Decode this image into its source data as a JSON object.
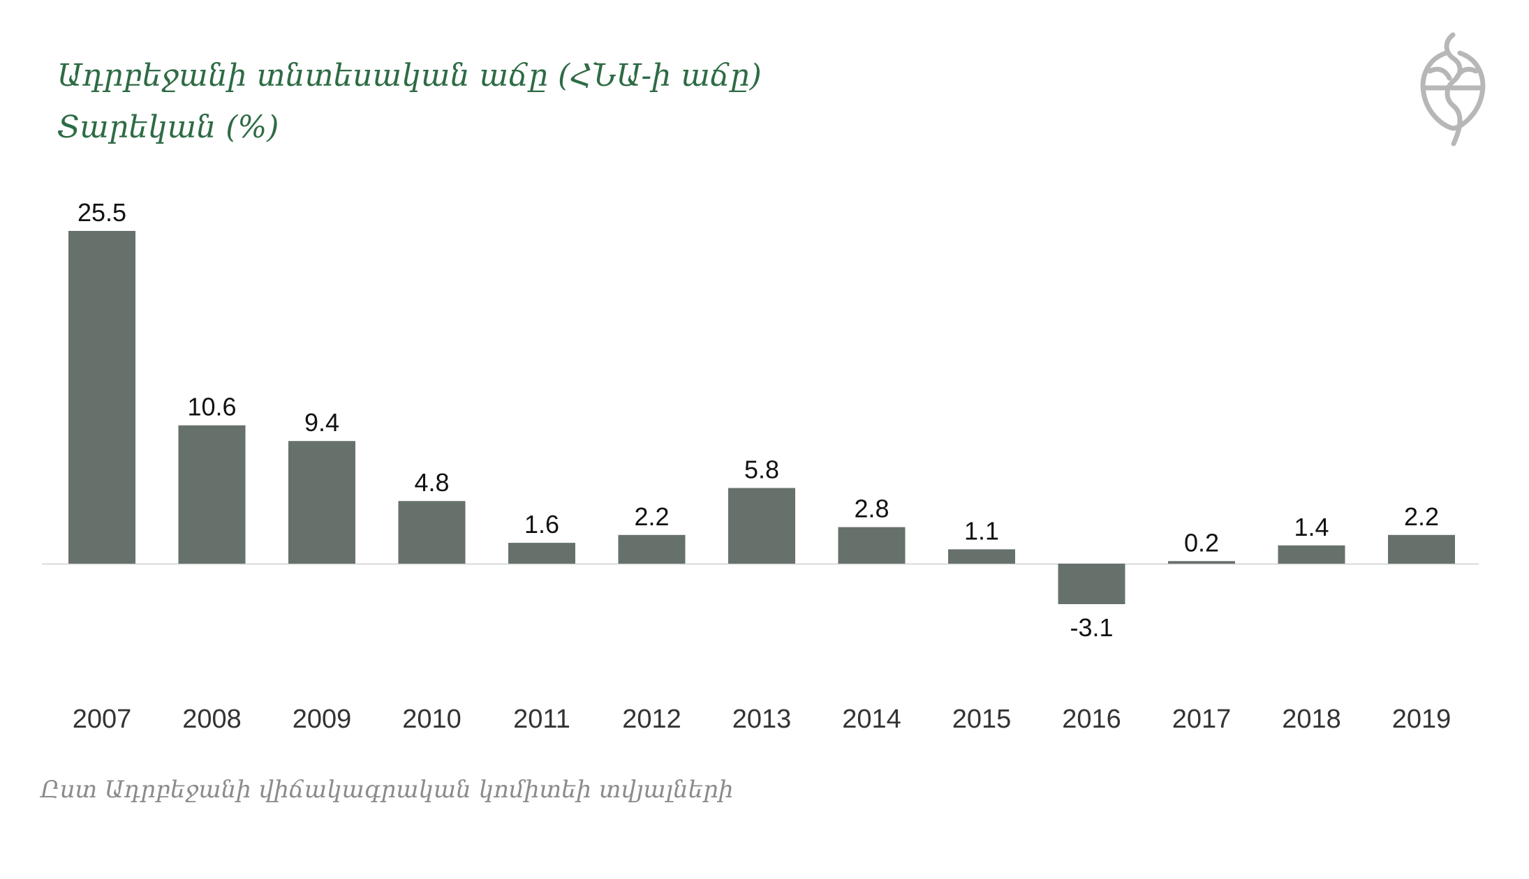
{
  "colors": {
    "title": "#2e6b45",
    "bar": "#67716b",
    "value_label": "#111111",
    "axis_label": "#333333",
    "baseline": "#d9d9d9",
    "source": "#8b8b8b",
    "logo": "#b7b7b7"
  },
  "header": {
    "title": "Ադրբեջանի տնտեսական աճը (ՀՆԱ-ի աճը)",
    "subtitle": "Տարեկան (%)"
  },
  "logo": {
    "icon": "seal-logo-icon"
  },
  "source": "Ըստ Ադրբեջանի վիճակագրական կոմիտեի տվյալների",
  "chart_data": {
    "type": "bar",
    "title": "Ադրբեջանի տնտեսական աճը (ՀՆԱ-ի աճը)",
    "subtitle": "Տարեկան (%)",
    "xlabel": "",
    "ylabel": "",
    "categories": [
      "2007",
      "2008",
      "2009",
      "2010",
      "2011",
      "2012",
      "2013",
      "2014",
      "2015",
      "2016",
      "2017",
      "2018",
      "2019"
    ],
    "values": [
      25.5,
      10.6,
      9.4,
      4.8,
      1.6,
      2.2,
      5.8,
      2.8,
      1.1,
      -3.1,
      0.2,
      1.4,
      2.2
    ],
    "value_labels": [
      "25.5",
      "10.6",
      "9.4",
      "4.8",
      "1.6",
      "2.2",
      "5.8",
      "2.8",
      "1.1",
      "-3.1",
      "0.2",
      "1.4",
      "2.2"
    ],
    "ylim": [
      -3.1,
      25.5
    ],
    "grid": false,
    "legend": "none"
  }
}
